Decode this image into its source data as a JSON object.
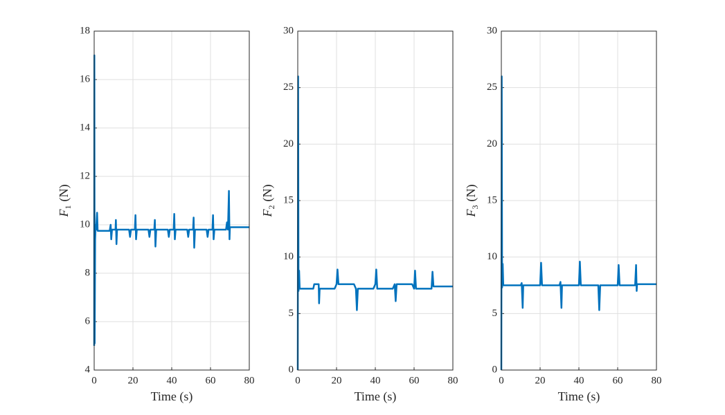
{
  "chart_data": [
    {
      "type": "line",
      "xlabel": "Time (s)",
      "ylabel_symbol": "F",
      "ylabel_subscript": "1",
      "ylabel_unit": "(N)",
      "xlim": [
        0,
        80
      ],
      "xticks": [
        0,
        20,
        40,
        60,
        80
      ],
      "ylim": [
        4,
        18
      ],
      "yticks": [
        4,
        6,
        8,
        10,
        12,
        14,
        16,
        18
      ],
      "grid": true,
      "color": "#0072bd",
      "x": [
        0,
        0.1,
        0.25,
        0.5,
        0.8,
        1,
        1.5,
        1.8,
        8,
        8.5,
        8.8,
        9.2,
        11,
        11.2,
        11.5,
        11.8,
        18,
        18.5,
        19,
        21,
        21.3,
        21.6,
        22,
        28,
        28.5,
        29,
        31,
        31.3,
        31.6,
        32,
        38,
        38.5,
        39,
        41,
        41.3,
        41.6,
        42,
        48,
        48.5,
        49,
        51,
        51.3,
        51.6,
        52,
        58,
        58.5,
        59,
        61,
        61.3,
        61.6,
        62,
        68,
        68.5,
        69,
        69.5,
        69.8,
        70,
        80
      ],
      "values": [
        5,
        17,
        5.1,
        9.4,
        10,
        9.8,
        10.5,
        9.75,
        9.75,
        10,
        9.4,
        9.8,
        9.8,
        10.2,
        9.2,
        9.8,
        9.8,
        9.5,
        9.8,
        9.8,
        10.4,
        9.4,
        9.8,
        9.8,
        9.5,
        9.8,
        9.8,
        10.2,
        9.1,
        9.8,
        9.8,
        9.5,
        9.8,
        9.8,
        10.45,
        9.4,
        9.8,
        9.8,
        9.5,
        9.8,
        9.8,
        10.3,
        9.05,
        9.8,
        9.8,
        9.5,
        9.8,
        9.8,
        10.4,
        9.4,
        9.8,
        9.8,
        10.1,
        9.8,
        11.4,
        9.4,
        9.9,
        9.9
      ]
    },
    {
      "type": "line",
      "xlabel": "Time (s)",
      "ylabel_symbol": "F",
      "ylabel_subscript": "2",
      "ylabel_unit": "(N)",
      "xlim": [
        0,
        80
      ],
      "xticks": [
        0,
        20,
        40,
        60,
        80
      ],
      "ylim": [
        0,
        30
      ],
      "yticks": [
        0,
        5,
        10,
        15,
        20,
        25,
        30
      ],
      "grid": true,
      "color": "#0072bd",
      "x": [
        0,
        0.2,
        0.4,
        0.7,
        1,
        8,
        8.5,
        10.8,
        11,
        11.3,
        19,
        20,
        20.5,
        21,
        29,
        30,
        30.5,
        31,
        39,
        40,
        40.5,
        41,
        49,
        50,
        50.5,
        51,
        59,
        60,
        60.5,
        61,
        69,
        69.5,
        70,
        80
      ],
      "values": [
        0,
        26,
        7,
        8.8,
        7.2,
        7.2,
        7.6,
        7.6,
        5.9,
        7.2,
        7.2,
        7.6,
        8.9,
        7.6,
        7.6,
        7.2,
        5.3,
        7.2,
        7.2,
        7.6,
        8.9,
        7.2,
        7.2,
        7.6,
        6.1,
        7.6,
        7.6,
        7.2,
        8.8,
        7.2,
        7.2,
        8.7,
        7.4,
        7.4
      ]
    },
    {
      "type": "line",
      "xlabel": "Time (s)",
      "ylabel_symbol": "F",
      "ylabel_subscript": "3",
      "ylabel_unit": "(N)",
      "xlim": [
        0,
        80
      ],
      "xticks": [
        0,
        20,
        40,
        60,
        80
      ],
      "ylim": [
        0,
        30
      ],
      "yticks": [
        0,
        5,
        10,
        15,
        20,
        25,
        30
      ],
      "grid": true,
      "color": "#0072bd",
      "x": [
        0,
        0.2,
        0.4,
        0.7,
        1,
        10,
        10.5,
        11,
        11.3,
        20,
        20.5,
        21,
        30,
        30.5,
        31,
        31.3,
        40,
        40.5,
        41,
        50,
        50.5,
        51,
        60,
        60.5,
        61,
        69,
        69.5,
        69.8,
        70,
        80
      ],
      "values": [
        0,
        26,
        7.3,
        9.4,
        7.5,
        7.5,
        7.7,
        5.5,
        7.5,
        7.5,
        9.5,
        7.5,
        7.5,
        7.8,
        5.5,
        7.5,
        7.5,
        9.6,
        7.5,
        7.5,
        5.3,
        7.5,
        7.5,
        9.3,
        7.5,
        7.5,
        9.3,
        7,
        7.6,
        7.6
      ]
    }
  ]
}
